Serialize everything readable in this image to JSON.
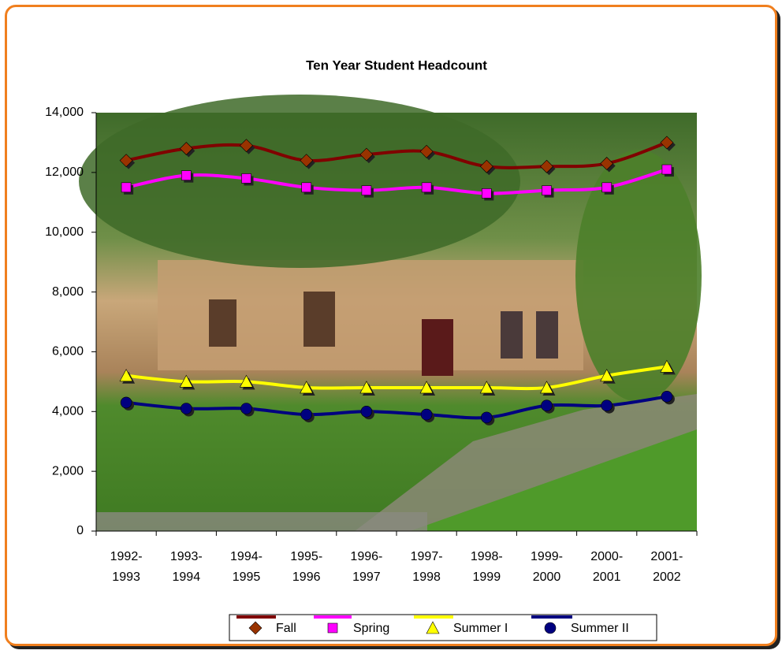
{
  "chart_data": {
    "type": "line",
    "title": "Ten Year Student Headcount",
    "categories": [
      "1992-1993",
      "1993-1994",
      "1994-1995",
      "1995-1996",
      "1996-1997",
      "1997-1998",
      "1998-1999",
      "1999-2000",
      "2000-2001",
      "2001-2002"
    ],
    "series": [
      {
        "name": "Fall",
        "color": "#800000",
        "marker_color": "#993300",
        "marker": "diamond",
        "values": [
          12400,
          12800,
          12900,
          12400,
          12600,
          12700,
          12200,
          12200,
          12300,
          13000
        ]
      },
      {
        "name": "Spring",
        "color": "#ff00ff",
        "marker_color": "#ff00ff",
        "marker": "square",
        "values": [
          11500,
          11900,
          11800,
          11500,
          11400,
          11500,
          11300,
          11400,
          11500,
          12100
        ]
      },
      {
        "name": "Summer I",
        "color": "#ffff00",
        "marker_color": "#ffff00",
        "marker": "triangle",
        "values": [
          5200,
          5000,
          5000,
          4800,
          4800,
          4800,
          4800,
          4800,
          5200,
          5500
        ]
      },
      {
        "name": "Summer II",
        "color": "#000080",
        "marker_color": "#000080",
        "marker": "circle",
        "values": [
          4300,
          4100,
          4100,
          3900,
          4000,
          3900,
          3800,
          4200,
          4200,
          4500
        ]
      }
    ],
    "ylim": [
      0,
      14000
    ],
    "yticks": [
      0,
      {
        "value": 2000,
        "label": "2,000"
      },
      {
        "value": 4000,
        "label": "4,000"
      },
      {
        "value": 6000,
        "label": "6,000"
      },
      {
        "value": 8000,
        "label": "8,000"
      },
      {
        "value": 10000,
        "label": "10,000"
      },
      {
        "value": 12000,
        "label": "12,000"
      },
      {
        "value": 14000,
        "label": "14,000"
      }
    ],
    "legend": "bottom"
  }
}
